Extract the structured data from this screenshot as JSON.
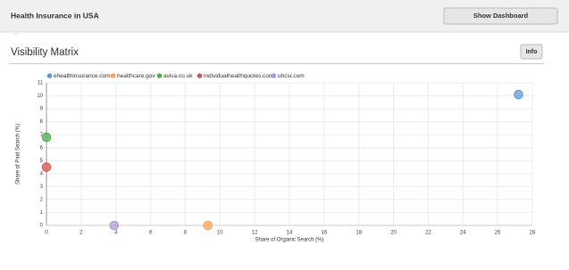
{
  "header": {
    "title": "Health Insurance in USA",
    "button": "Show Dashboard"
  },
  "section": {
    "title": "Visibility Matrix",
    "button": "Info"
  },
  "chart_data": {
    "type": "scatter",
    "xlabel": "Share of Organic Search (%)",
    "ylabel": "Share of Paid Search (%)",
    "xlim": [
      0,
      28
    ],
    "xticks": [
      0,
      2,
      4,
      6,
      8,
      10,
      12,
      14,
      16,
      18,
      20,
      22,
      24,
      26,
      28
    ],
    "ylim": [
      0,
      11
    ],
    "yticks": [
      0,
      1,
      2,
      3,
      4,
      5,
      6,
      7,
      8,
      9,
      10,
      11
    ],
    "grid": true,
    "series": [
      {
        "name": "ehealthinsurance.com",
        "color": "#5b9bd5",
        "x": [
          27.2
        ],
        "values": [
          10.1
        ]
      },
      {
        "name": "healthcare.gov",
        "color": "#f5a55a",
        "x": [
          9.3
        ],
        "values": [
          0
        ]
      },
      {
        "name": "aviva.co.uk",
        "color": "#4cae4c",
        "x": [
          0
        ],
        "values": [
          6.8
        ]
      },
      {
        "name": "individualhealthquotes.com",
        "color": "#d9534f",
        "x": [
          0
        ],
        "values": [
          4.5
        ]
      },
      {
        "name": "uhcsr.com",
        "color": "#b197d9",
        "x": [
          3.9
        ],
        "values": [
          0
        ]
      }
    ]
  }
}
